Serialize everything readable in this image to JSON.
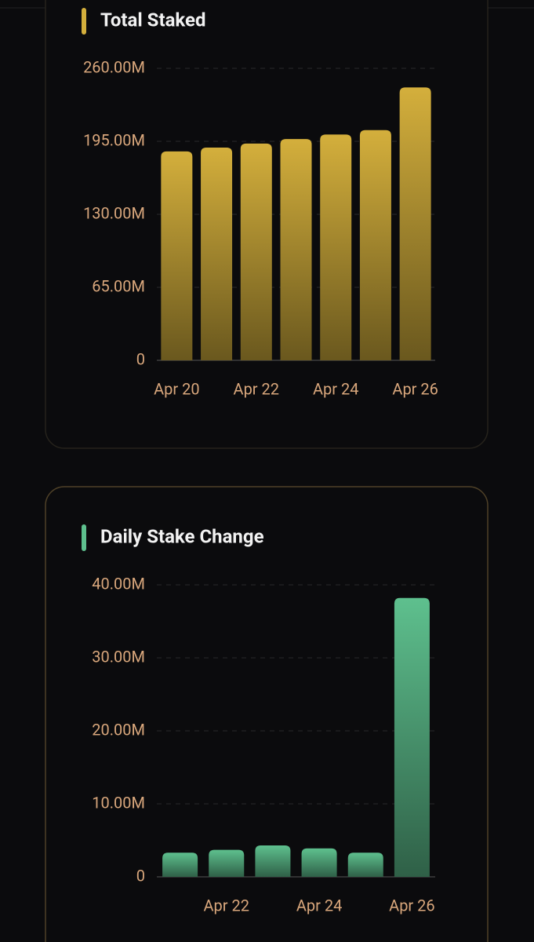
{
  "chart_data": [
    {
      "type": "bar",
      "title": "Total Staked",
      "categories": [
        "Apr 20",
        null,
        "Apr 22",
        null,
        "Apr 24",
        null,
        "Apr 26"
      ],
      "values": [
        186,
        189.4,
        193,
        197,
        201,
        205,
        243
      ],
      "color": "#d4af3c",
      "accent": "#d4af3c",
      "ylim": [
        0,
        260
      ],
      "yticks": [
        0,
        {
          "value": 65,
          "label": "65.00M"
        },
        {
          "value": 130,
          "label": "130.00M"
        },
        {
          "value": 195,
          "label": "195.00M"
        },
        {
          "value": 260,
          "label": "260.00M"
        }
      ],
      "grid": true
    },
    {
      "type": "bar",
      "title": "Daily Stake Change",
      "categories": [
        null,
        "Apr 22",
        null,
        "Apr 24",
        null,
        "Apr 26"
      ],
      "values": [
        3.3,
        3.7,
        4.3,
        3.9,
        3.3,
        38.2
      ],
      "color": "#5ec08e",
      "accent": "#5ec08e",
      "ylim": [
        0,
        40
      ],
      "yticks": [
        0,
        {
          "value": 10,
          "label": "10.00M"
        },
        {
          "value": 20,
          "label": "20.00M"
        },
        {
          "value": 30,
          "label": "30.00M"
        },
        {
          "value": 40,
          "label": "40.00M"
        }
      ],
      "grid": true
    }
  ]
}
